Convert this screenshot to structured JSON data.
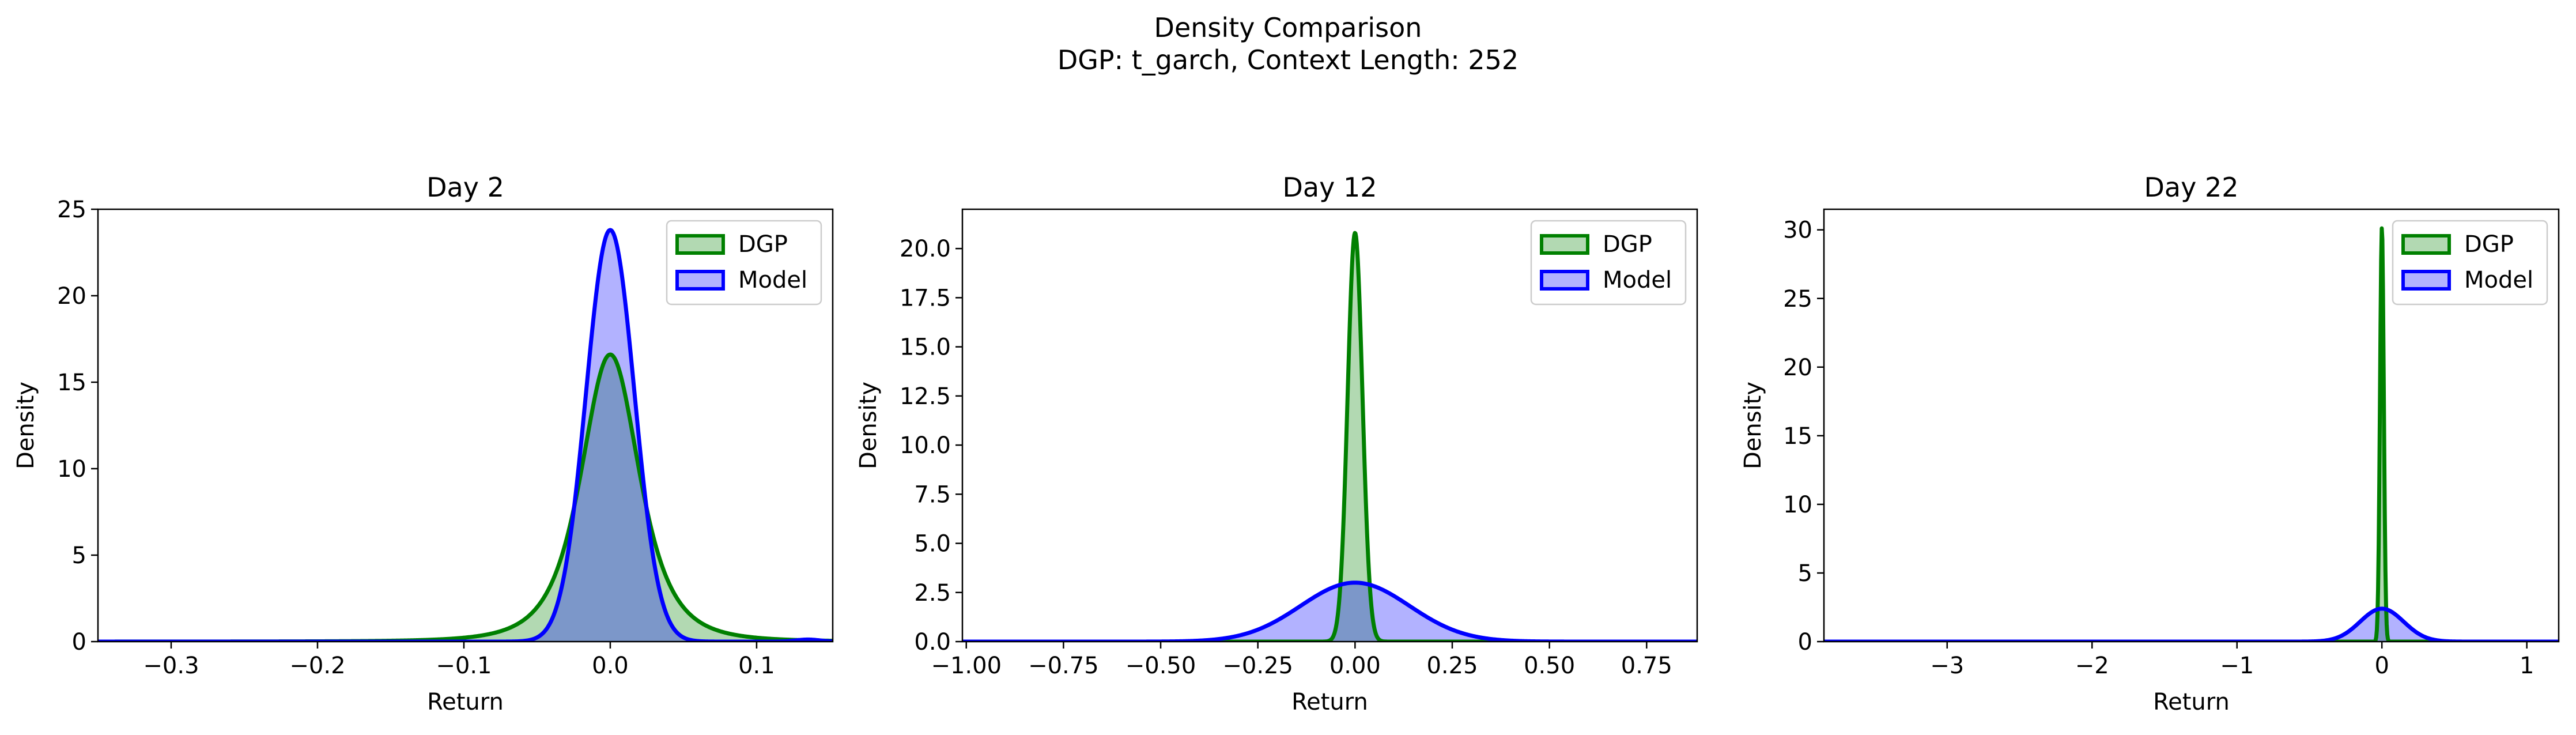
{
  "figure": {
    "suptitle_line1": "Density Comparison",
    "suptitle_line2": "DGP: t_garch, Context Length: 252"
  },
  "colors": {
    "dgp": "#008000",
    "model": "#0000ff",
    "dgp_fill": "#008000",
    "model_fill": "#0000ff"
  },
  "chart_data": [
    {
      "type": "area",
      "title": "Day 2",
      "xlabel": "Return",
      "ylabel": "Density",
      "xlim": [
        -0.35,
        0.152
      ],
      "ylim": [
        0,
        25
      ],
      "xticks": [
        -0.3,
        -0.2,
        -0.1,
        0.0,
        0.1
      ],
      "xtick_labels": [
        "−0.3",
        "−0.2",
        "−0.1",
        "0.0",
        "0.1"
      ],
      "yticks": [
        0,
        5,
        10,
        15,
        20,
        25
      ],
      "ytick_labels": [
        "0",
        "5",
        "10",
        "15",
        "20",
        "25"
      ],
      "legend": "top-right",
      "series": [
        {
          "name": "DGP",
          "color_key": "dgp",
          "shape": "t",
          "mean": 0.0,
          "peak": 16.6,
          "scale": 0.021,
          "df": 3
        },
        {
          "name": "Model",
          "color_key": "model",
          "shape": "normal",
          "mean": 0.0,
          "peak": 23.8,
          "sd": 0.0165,
          "tail_bumps": [
            {
              "mean": 0.135,
              "peak": 0.12,
              "sd": 0.008
            }
          ]
        }
      ]
    },
    {
      "type": "area",
      "title": "Day 12",
      "xlabel": "Return",
      "ylabel": "Density",
      "xlim": [
        -1.01,
        0.88
      ],
      "ylim": [
        0,
        22
      ],
      "xticks": [
        -1.0,
        -0.75,
        -0.5,
        -0.25,
        0.0,
        0.25,
        0.5,
        0.75
      ],
      "xtick_labels": [
        "−1.00",
        "−0.75",
        "−0.50",
        "−0.25",
        "0.00",
        "0.25",
        "0.50",
        "0.75"
      ],
      "yticks": [
        0,
        2.5,
        5.0,
        7.5,
        10.0,
        12.5,
        15.0,
        17.5,
        20.0
      ],
      "ytick_labels": [
        "0.0",
        "2.5",
        "5.0",
        "7.5",
        "10.0",
        "12.5",
        "15.0",
        "17.5",
        "20.0"
      ],
      "legend": "top-right",
      "series": [
        {
          "name": "DGP",
          "color_key": "dgp",
          "shape": "normal",
          "mean": 0.0,
          "peak": 20.8,
          "sd": 0.019
        },
        {
          "name": "Model",
          "color_key": "model",
          "shape": "normal",
          "mean": 0.0,
          "peak": 3.0,
          "sd": 0.14
        }
      ]
    },
    {
      "type": "area",
      "title": "Day 22",
      "xlabel": "Return",
      "ylabel": "Density",
      "xlim": [
        -3.85,
        1.22
      ],
      "ylim": [
        0,
        31.5
      ],
      "xticks": [
        -3,
        -2,
        -1,
        0,
        1
      ],
      "xtick_labels": [
        "−3",
        "−2",
        "−1",
        "0",
        "1"
      ],
      "yticks": [
        0,
        5,
        10,
        15,
        20,
        25,
        30
      ],
      "ytick_labels": [
        "0",
        "5",
        "10",
        "15",
        "20",
        "25",
        "30"
      ],
      "legend": "top-right",
      "series": [
        {
          "name": "DGP",
          "color_key": "dgp",
          "shape": "normal",
          "mean": 0.0,
          "peak": 30.2,
          "sd": 0.013
        },
        {
          "name": "Model",
          "color_key": "model",
          "shape": "normal",
          "mean": 0.0,
          "peak": 2.4,
          "sd": 0.15
        }
      ]
    }
  ]
}
